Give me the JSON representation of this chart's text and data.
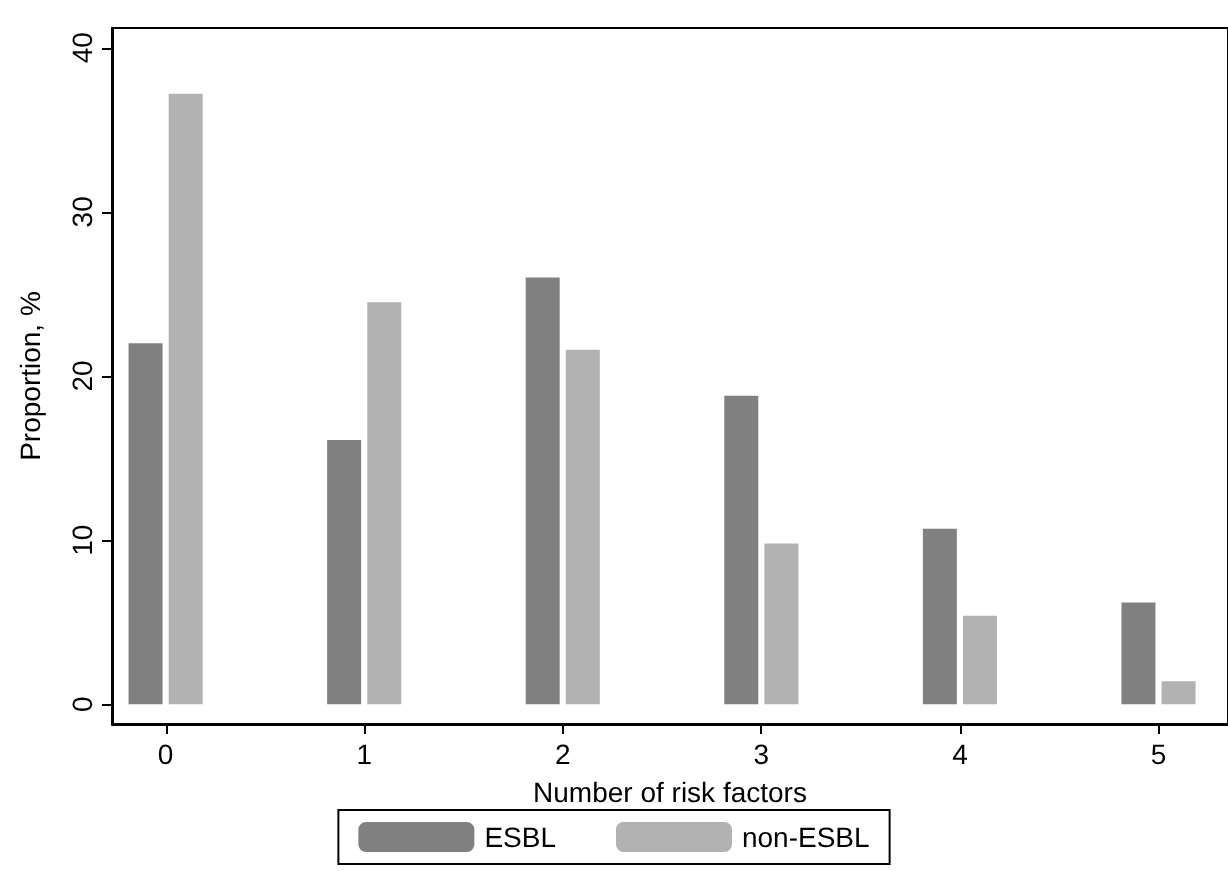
{
  "chart_data": {
    "type": "bar",
    "xlabel": "Number of risk factors",
    "ylabel": "Proportion, %",
    "x": [
      0,
      1,
      2,
      3,
      4,
      5
    ],
    "xlim": [
      -0.27,
      5.35
    ],
    "xticks": [
      0,
      1,
      2,
      3,
      4,
      5
    ],
    "ylim": [
      -1.2,
      41.2
    ],
    "yticks": [
      0,
      10,
      20,
      30,
      40
    ],
    "grid": false,
    "legend": "bottom",
    "series": [
      {
        "name": "ESBL",
        "color": "#808080",
        "values": [
          22,
          16.1,
          26,
          18.8,
          10.7,
          6.2
        ]
      },
      {
        "name": "non-ESBL",
        "color": "#b2b2b2",
        "values": [
          37.2,
          24.5,
          21.6,
          9.8,
          5.4,
          1.4
        ]
      }
    ]
  }
}
